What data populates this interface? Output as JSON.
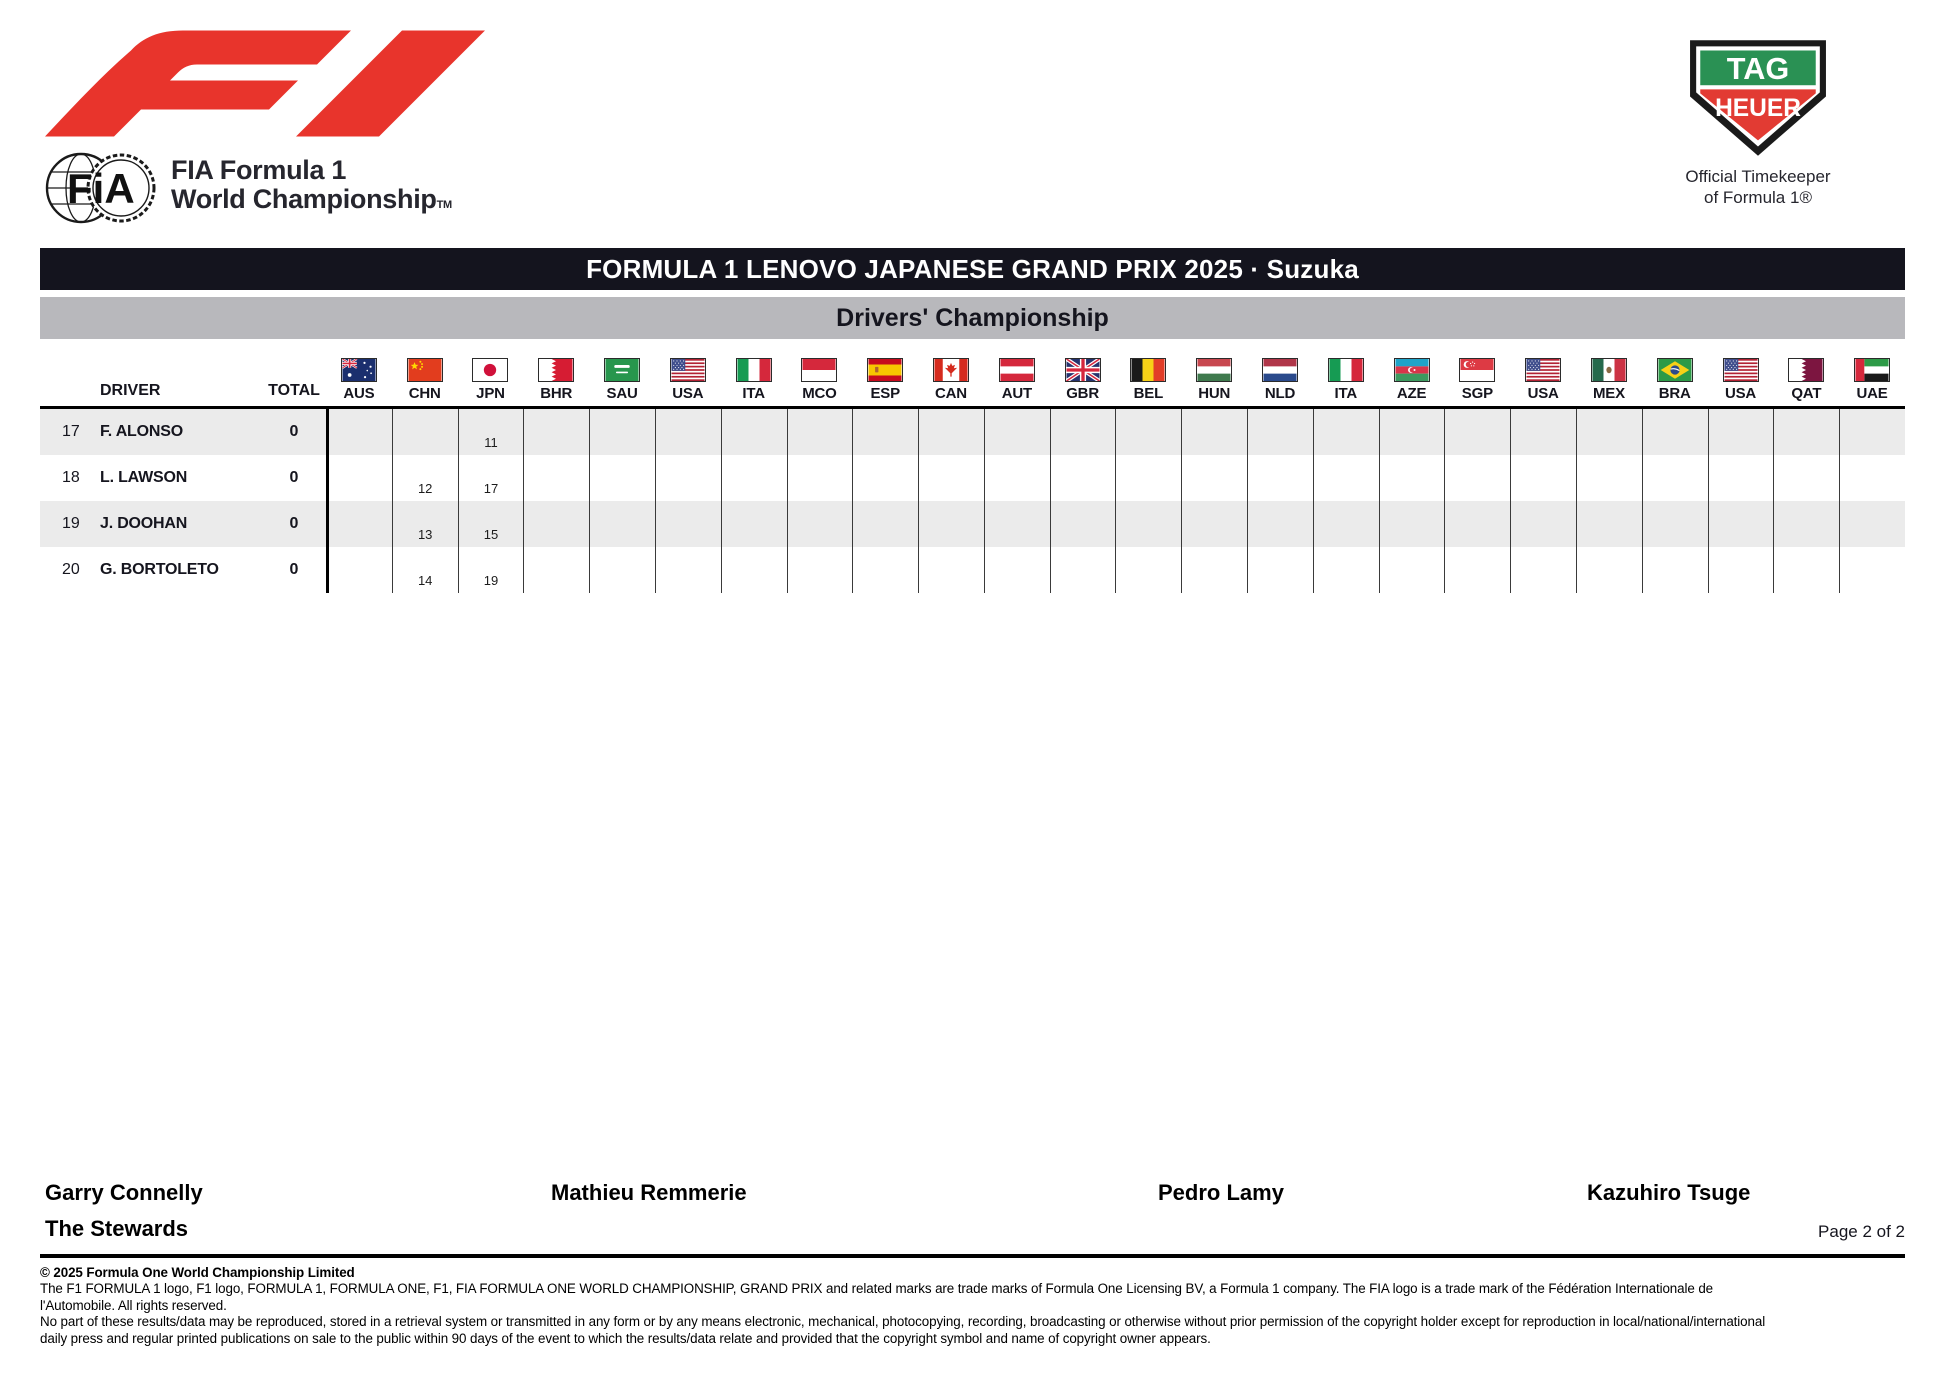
{
  "branding": {
    "f1_logo_color": "#e8342c",
    "fia": {
      "monogram": "FiA",
      "caption_line1": "FIA Formula 1",
      "caption_line2": "World Championship",
      "tm": "TM"
    },
    "tag_heuer": {
      "top": "TAG",
      "bottom": "HEUER",
      "caption_line1": "Official Timekeeper",
      "caption_line2": "of Formula 1®",
      "green": "#2a9154",
      "red": "#e23b33"
    }
  },
  "title_bar": {
    "text": "FORMULA 1 LENOVO JAPANESE GRAND PRIX 2025 · Suzuka",
    "bg": "#14141e",
    "fg": "#ffffff"
  },
  "subtitle_bar": {
    "text": "Drivers' Championship",
    "bg": "#b8b8bc",
    "fg": "#15151e"
  },
  "table": {
    "driver_header": "DRIVER",
    "total_header": "TOTAL",
    "stripe_color": "#ebebeb",
    "races": [
      {
        "code": "AUS",
        "design": "aus"
      },
      {
        "code": "CHN",
        "design": "chn"
      },
      {
        "code": "JPN",
        "design": "jpn"
      },
      {
        "code": "BHR",
        "design": "bhr"
      },
      {
        "code": "SAU",
        "design": "sau"
      },
      {
        "code": "USA",
        "design": "usa"
      },
      {
        "code": "ITA",
        "design": "ita"
      },
      {
        "code": "MCO",
        "design": "mco"
      },
      {
        "code": "ESP",
        "design": "esp"
      },
      {
        "code": "CAN",
        "design": "can"
      },
      {
        "code": "AUT",
        "design": "aut"
      },
      {
        "code": "GBR",
        "design": "gbr"
      },
      {
        "code": "BEL",
        "design": "bel"
      },
      {
        "code": "HUN",
        "design": "hun"
      },
      {
        "code": "NLD",
        "design": "nld"
      },
      {
        "code": "ITA",
        "design": "ita"
      },
      {
        "code": "AZE",
        "design": "aze"
      },
      {
        "code": "SGP",
        "design": "sgp"
      },
      {
        "code": "USA",
        "design": "usa"
      },
      {
        "code": "MEX",
        "design": "mex"
      },
      {
        "code": "BRA",
        "design": "bra"
      },
      {
        "code": "USA",
        "design": "usa"
      },
      {
        "code": "QAT",
        "design": "qat"
      },
      {
        "code": "UAE",
        "design": "uae"
      }
    ],
    "rows": [
      {
        "pos": "17",
        "driver": "F. ALONSO",
        "total": "0",
        "results": {
          "2": "11"
        }
      },
      {
        "pos": "18",
        "driver": "L. LAWSON",
        "total": "0",
        "results": {
          "1": "12",
          "2": "17"
        }
      },
      {
        "pos": "19",
        "driver": "J. DOOHAN",
        "total": "0",
        "results": {
          "1": "13",
          "2": "15"
        }
      },
      {
        "pos": "20",
        "driver": "G. BORTOLETO",
        "total": "0",
        "results": {
          "1": "14",
          "2": "19"
        }
      }
    ]
  },
  "footer": {
    "signatures": [
      {
        "name": "Garry Connelly",
        "role": "The Stewards"
      },
      {
        "name": "Mathieu Remmerie"
      },
      {
        "name": "Pedro Lamy"
      },
      {
        "name": "Kazuhiro Tsuge"
      }
    ],
    "page_label": "Page 2 of 2",
    "legal": [
      "© 2025 Formula One World Championship Limited",
      "The F1 FORMULA 1 logo, F1 logo, FORMULA 1, FORMULA ONE, F1, FIA FORMULA ONE WORLD CHAMPIONSHIP, GRAND PRIX and related marks are trade marks of Formula One Licensing BV, a Formula 1 company. The FIA logo is a trade mark of the Fédération Internationale de",
      "l'Automobile. All rights reserved.",
      "No part of these results/data may be reproduced, stored in a retrieval system or transmitted in any form or by any means electronic, mechanical, photocopying, recording, broadcasting or otherwise without prior permission of the copyright holder except for reproduction in local/national/international",
      "daily press and regular printed publications on sale to the public within 90 days of the event to which the results/data relate and provided that the copyright symbol and name of copyright owner appears."
    ]
  }
}
